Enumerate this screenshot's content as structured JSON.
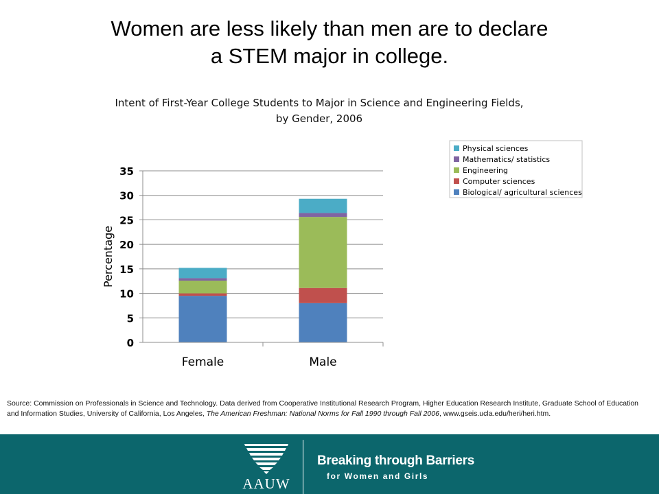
{
  "slide": {
    "title_line1": "Women are less likely than men are to declare",
    "title_line2": "a STEM major in college."
  },
  "chart_data": {
    "type": "bar",
    "stacked": true,
    "title_line1": "Intent of First-Year College Students to Major in Science and Engineering Fields,",
    "title_line2": "by Gender, 2006",
    "xlabel": "",
    "ylabel": "Percentage",
    "ylim": [
      0,
      35
    ],
    "yticks": [
      0,
      5,
      10,
      15,
      20,
      25,
      30,
      35
    ],
    "grid": true,
    "legend_position": "top-right",
    "categories": [
      "Female",
      "Male"
    ],
    "series": [
      {
        "name": "Biological/ agricultural sciences",
        "color": "#4f81bd",
        "values": [
          9.5,
          8.0
        ]
      },
      {
        "name": "Computer sciences",
        "color": "#c0504d",
        "values": [
          0.5,
          3.1
        ]
      },
      {
        "name": "Engineering",
        "color": "#9bbb59",
        "values": [
          2.6,
          14.5
        ]
      },
      {
        "name": "Mathematics/ statistics",
        "color": "#8064a2",
        "values": [
          0.5,
          0.8
        ]
      },
      {
        "name": "Physical sciences",
        "color": "#4bacc6",
        "values": [
          2.1,
          2.9
        ]
      }
    ]
  },
  "source": {
    "text_part1": "Source: Commission on Professionals in Science and Technology. Data derived from Cooperative Institutional Research Program, Higher Education Research Institute, Graduate School of Education and Information Studies, University of California, Los Angeles, ",
    "publication": "The American Freshman: National Norms for Fall 1990 through Fall 2006",
    "text_part2": ", www.gseis.ucla.edu/heri/heri.htm."
  },
  "footer": {
    "logo_text": "AAUW",
    "tagline_line1": "Breaking through Barriers",
    "tagline_line2": "for Women and Girls",
    "background_color": "#0c666c"
  }
}
